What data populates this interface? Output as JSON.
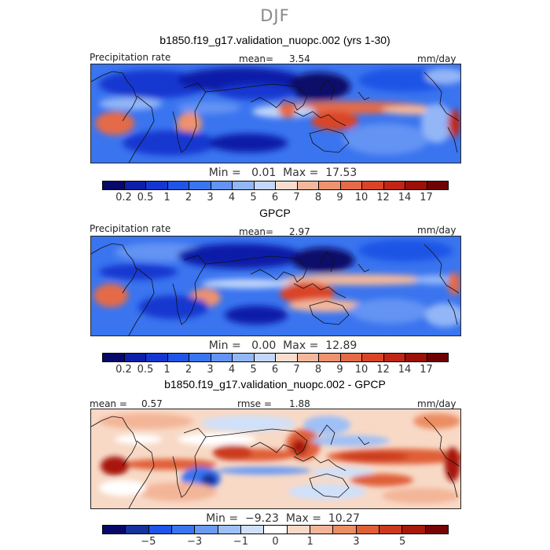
{
  "season": "DJF",
  "panels": [
    {
      "title": "b1850.f19_g17.validation_nuopc.002 (yrs 1-30)",
      "left_label": "Precipitation rate",
      "mean_label": "mean=",
      "mean_value": "3.54",
      "units": "mm/day",
      "min_label": "Min =",
      "min_value": "0.01",
      "max_label": "Max =",
      "max_value": "17.53",
      "colorbar_ticks": [
        "0.2",
        "0.5",
        "1",
        "2",
        "3",
        "4",
        "5",
        "6",
        "7",
        "8",
        "9",
        "10",
        "12",
        "14",
        "17"
      ]
    },
    {
      "title": "GPCP",
      "left_label": "Precipitation rate",
      "mean_label": "mean=",
      "mean_value": "2.97",
      "units": "mm/day",
      "min_label": "Min =",
      "min_value": "0.00",
      "max_label": "Max =",
      "max_value": "12.89",
      "colorbar_ticks": [
        "0.2",
        "0.5",
        "1",
        "2",
        "3",
        "4",
        "5",
        "6",
        "7",
        "8",
        "9",
        "10",
        "12",
        "14",
        "17"
      ]
    },
    {
      "title": "b1850.f19_g17.validation_nuopc.002 - GPCP",
      "mean_label": "mean =",
      "mean_value": "0.57",
      "rmse_label": "rmse =",
      "rmse_value": "1.88",
      "units": "mm/day",
      "min_label": "Min =",
      "min_value": "−9.23",
      "max_label": "Max =",
      "max_value": "10.27",
      "colorbar_ticks": [
        "−5",
        "−3",
        "−1",
        "0",
        "1",
        "3",
        "5"
      ]
    }
  ],
  "colors": {
    "precip_scale": [
      "#08086b",
      "#0d1fa8",
      "#1537d0",
      "#1f55e6",
      "#3a74ef",
      "#6393f3",
      "#93b6f7",
      "#c3d7fa",
      "#f6ddd0",
      "#f3b89c",
      "#ee926f",
      "#e56a47",
      "#d94428",
      "#c02515",
      "#9c1008",
      "#6e0202"
    ],
    "diff_scale": [
      "#08086b",
      "#14339e",
      "#1f55e6",
      "#3a74ef",
      "#6b9af3",
      "#9fc0f7",
      "#cfe0fa",
      "#ffffff",
      "#f8d9c6",
      "#f3b598",
      "#ec8d64",
      "#e05f37",
      "#cc3a1c",
      "#a8180b",
      "#780404"
    ]
  }
}
